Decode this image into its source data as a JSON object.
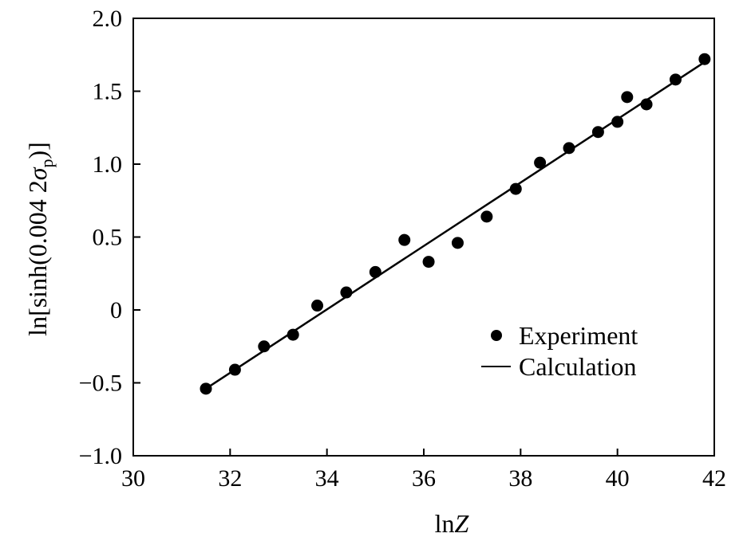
{
  "chart_data": {
    "type": "scatter",
    "xlabel_main": "ln",
    "xlabel_italic": "Z",
    "ylabel_parts": {
      "prefix": "ln[sinh(0.004 2",
      "sigma": "σ",
      "subscript": "p",
      "suffix": ")]"
    },
    "xlim": [
      30,
      42
    ],
    "ylim": [
      -1.0,
      2.0
    ],
    "xticks": [
      30,
      32,
      34,
      36,
      38,
      40,
      42
    ],
    "xtick_labels": [
      "30",
      "32",
      "34",
      "36",
      "38",
      "40",
      "42"
    ],
    "yticks": [
      -1.0,
      -0.5,
      0,
      0.5,
      1.0,
      1.5,
      2.0
    ],
    "ytick_labels": [
      "−1.0",
      "−0.5",
      "0",
      "0.5",
      "1.0",
      "1.5",
      "2.0"
    ],
    "grid": false,
    "legend_position": "center-right",
    "series": [
      {
        "name": "Experiment",
        "style": "markers",
        "color": "#000000",
        "x": [
          31.5,
          32.1,
          32.7,
          33.3,
          33.8,
          34.4,
          35.0,
          35.6,
          36.1,
          36.7,
          37.3,
          37.9,
          38.4,
          39.0,
          39.6,
          40.0,
          40.2,
          40.6,
          41.2,
          41.8
        ],
        "y": [
          -0.54,
          -0.41,
          -0.25,
          -0.17,
          0.03,
          0.12,
          0.26,
          0.48,
          0.33,
          0.46,
          0.64,
          0.83,
          1.01,
          1.11,
          1.22,
          1.29,
          1.46,
          1.41,
          1.58,
          1.72
        ]
      },
      {
        "name": "Calculation",
        "style": "line",
        "color": "#000000",
        "x": [
          31.5,
          41.8
        ],
        "y": [
          -0.54,
          1.7
        ]
      }
    ]
  }
}
